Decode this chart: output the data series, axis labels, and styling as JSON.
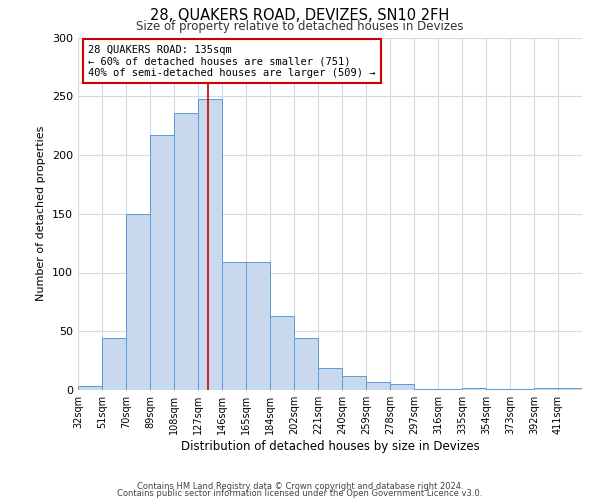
{
  "title": "28, QUAKERS ROAD, DEVIZES, SN10 2FH",
  "subtitle": "Size of property relative to detached houses in Devizes",
  "xlabel": "Distribution of detached houses by size in Devizes",
  "ylabel": "Number of detached properties",
  "bin_labels": [
    "32sqm",
    "51sqm",
    "70sqm",
    "89sqm",
    "108sqm",
    "127sqm",
    "146sqm",
    "165sqm",
    "184sqm",
    "202sqm",
    "221sqm",
    "240sqm",
    "259sqm",
    "278sqm",
    "297sqm",
    "316sqm",
    "335sqm",
    "354sqm",
    "373sqm",
    "392sqm",
    "411sqm"
  ],
  "bin_values": [
    3,
    44,
    150,
    217,
    236,
    248,
    109,
    109,
    63,
    44,
    19,
    12,
    7,
    5,
    1,
    1,
    2,
    1,
    1,
    2,
    2
  ],
  "bar_color": "#c9d9ed",
  "bar_edge_color": "#5b9bd5",
  "vline_x": 135,
  "vline_color": "#cc0000",
  "annotation_title": "28 QUAKERS ROAD: 135sqm",
  "annotation_line1": "← 60% of detached houses are smaller (751)",
  "annotation_line2": "40% of semi-detached houses are larger (509) →",
  "annotation_box_color": "#ffffff",
  "annotation_box_edge_color": "#cc0000",
  "ylim": [
    0,
    300
  ],
  "yticks": [
    0,
    50,
    100,
    150,
    200,
    250,
    300
  ],
  "grid_color": "#d0daea",
  "footer1": "Contains HM Land Registry data © Crown copyright and database right 2024.",
  "footer2": "Contains public sector information licensed under the Open Government Licence v3.0."
}
